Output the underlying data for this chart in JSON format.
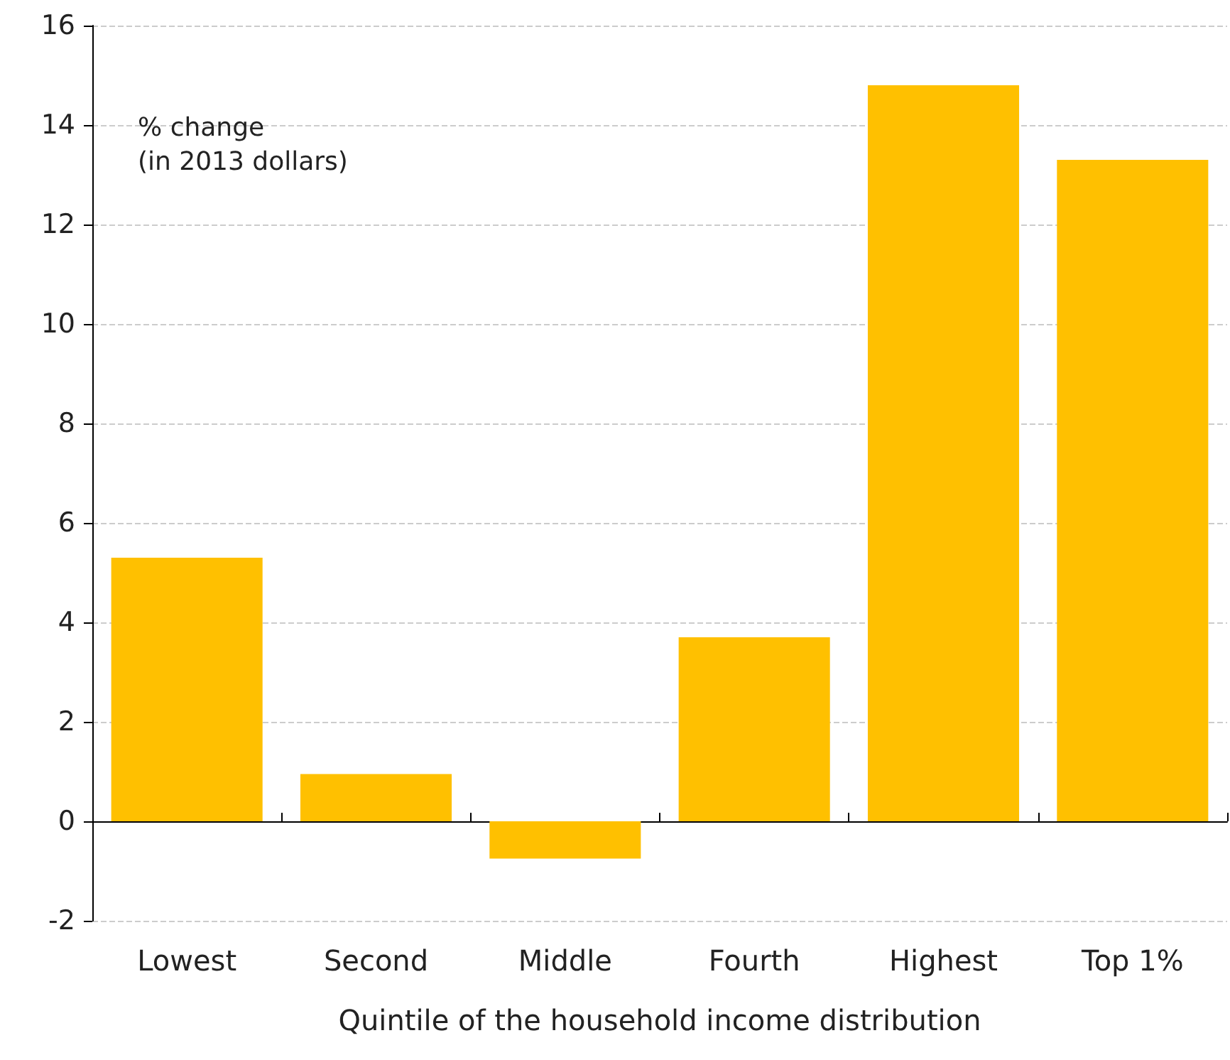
{
  "chart_data": {
    "type": "bar",
    "categories": [
      "Lowest",
      "Second",
      "Middle",
      "Fourth",
      "Highest",
      "Top 1%"
    ],
    "values": [
      5.3,
      0.95,
      -0.75,
      3.7,
      14.8,
      13.3
    ],
    "color": "#ffc000",
    "ylabel": "% change\n(in 2013 dollars)",
    "xlabel": "Quintile of the household income distribution",
    "ylim": [
      -2,
      16
    ],
    "yticks": [
      -2,
      0,
      2,
      4,
      6,
      8,
      10,
      12,
      14,
      16
    ],
    "grid": "y"
  }
}
